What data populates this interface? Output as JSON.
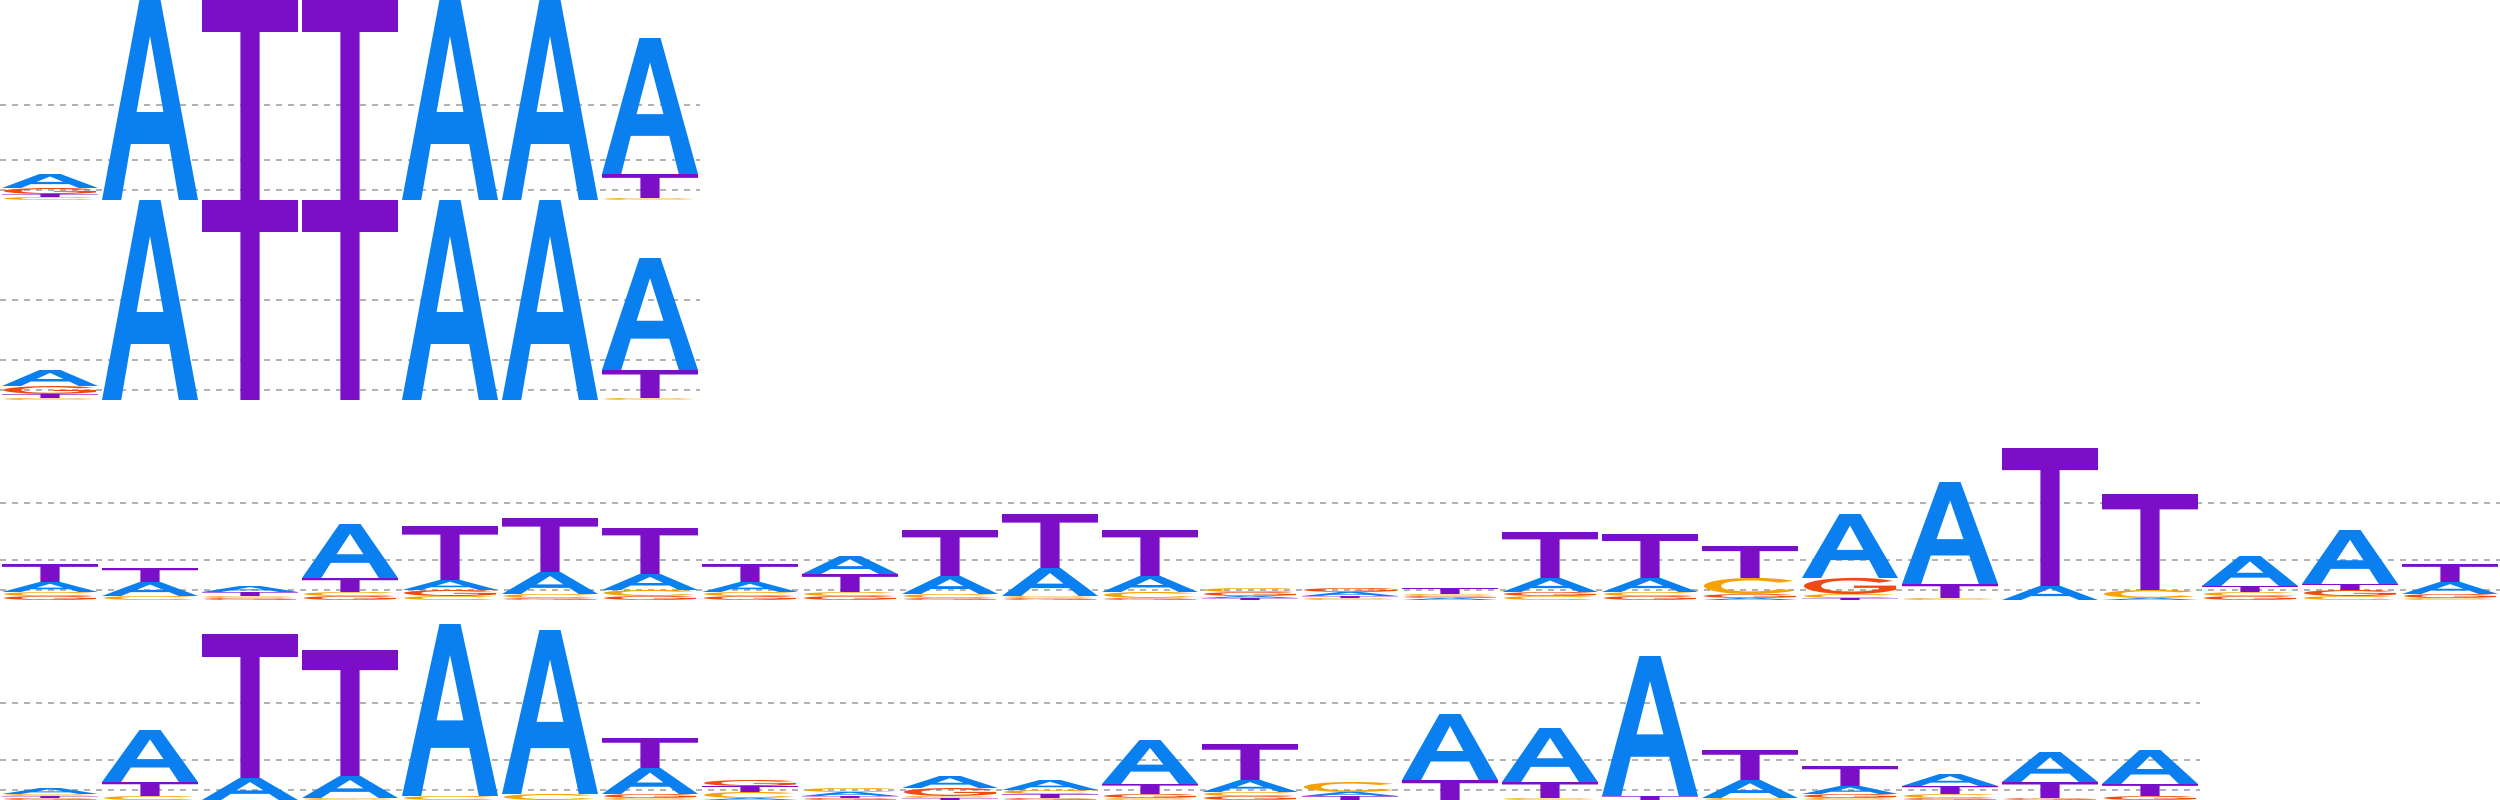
{
  "colors": {
    "A": "#0a7ff0",
    "T": "#7b0fc8",
    "C": "#f5a100",
    "G": "#f04a10",
    "grid": "#9a9a9a"
  },
  "logos": [
    {
      "name": "logo-1",
      "columns": [
        [
          [
            "A",
            0.07
          ],
          [
            "G",
            0.03
          ],
          [
            "C",
            0.015
          ],
          [
            "T",
            0.015
          ]
        ],
        [
          [
            "A",
            1.0
          ]
        ],
        [
          [
            "T",
            1.0
          ]
        ],
        [
          [
            "T",
            1.0
          ]
        ],
        [
          [
            "A",
            1.0
          ]
        ],
        [
          [
            "A",
            1.0
          ]
        ],
        [
          [
            "A",
            0.68
          ],
          [
            "T",
            0.12
          ],
          [
            "C",
            0.01
          ]
        ]
      ]
    },
    {
      "name": "logo-2",
      "columns": [
        [
          [
            "A",
            0.08
          ],
          [
            "G",
            0.04
          ],
          [
            "T",
            0.02
          ],
          [
            "C",
            0.01
          ]
        ],
        [
          [
            "A",
            1.0
          ]
        ],
        [
          [
            "T",
            1.0
          ]
        ],
        [
          [
            "T",
            1.0
          ]
        ],
        [
          [
            "A",
            1.0
          ]
        ],
        [
          [
            "A",
            1.0
          ]
        ],
        [
          [
            "A",
            0.56
          ],
          [
            "T",
            0.14
          ],
          [
            "C",
            0.01
          ]
        ]
      ]
    },
    {
      "name": "logo-3",
      "columns": [
        [
          [
            "T",
            0.09
          ],
          [
            "A",
            0.05
          ],
          [
            "G",
            0.02
          ],
          [
            "C",
            0.02
          ]
        ],
        [
          [
            "A",
            0.07
          ],
          [
            "T",
            0.07
          ],
          [
            "C",
            0.02
          ]
        ],
        [
          [
            "A",
            0.03
          ],
          [
            "T",
            0.02
          ],
          [
            "G",
            0.01
          ],
          [
            "C",
            0.01
          ]
        ],
        [
          [
            "A",
            0.27
          ],
          [
            "T",
            0.07
          ],
          [
            "G",
            0.02
          ],
          [
            "C",
            0.02
          ]
        ],
        [
          [
            "T",
            0.27
          ],
          [
            "A",
            0.05
          ],
          [
            "G",
            0.03
          ],
          [
            "C",
            0.02
          ]
        ],
        [
          [
            "T",
            0.27
          ],
          [
            "A",
            0.11
          ],
          [
            "C",
            0.02
          ],
          [
            "G",
            0.01
          ]
        ],
        [
          [
            "T",
            0.23
          ],
          [
            "A",
            0.08
          ],
          [
            "C",
            0.03
          ],
          [
            "G",
            0.02
          ]
        ],
        [
          [
            "A",
            0.05
          ],
          [
            "T",
            0.09
          ],
          [
            "G",
            0.02
          ],
          [
            "C",
            0.02
          ]
        ],
        [
          [
            "T",
            0.09
          ],
          [
            "A",
            0.09
          ],
          [
            "G",
            0.02
          ],
          [
            "C",
            0.02
          ]
        ],
        [
          [
            "T",
            0.23
          ],
          [
            "A",
            0.09
          ],
          [
            "C",
            0.02
          ],
          [
            "G",
            0.01
          ]
        ],
        [
          [
            "T",
            0.27
          ],
          [
            "A",
            0.14
          ],
          [
            "G",
            0.01
          ],
          [
            "C",
            0.01
          ]
        ],
        [
          [
            "T",
            0.23
          ],
          [
            "A",
            0.08
          ],
          [
            "C",
            0.03
          ],
          [
            "G",
            0.01
          ]
        ],
        [
          [
            "G",
            0.02
          ],
          [
            "C",
            0.02
          ],
          [
            "T",
            0.01
          ],
          [
            "A",
            0.01
          ]
        ],
        [
          [
            "A",
            0.02
          ],
          [
            "G",
            0.02
          ],
          [
            "C",
            0.01
          ],
          [
            "T",
            0.01
          ]
        ],
        [
          [
            "T",
            0.03
          ],
          [
            "A",
            0.01
          ],
          [
            "G",
            0.01
          ],
          [
            "C",
            0.01
          ]
        ],
        [
          [
            "T",
            0.23
          ],
          [
            "A",
            0.07
          ],
          [
            "C",
            0.02
          ],
          [
            "G",
            0.02
          ]
        ],
        [
          [
            "T",
            0.22
          ],
          [
            "A",
            0.07
          ],
          [
            "G",
            0.02
          ],
          [
            "C",
            0.02
          ]
        ],
        [
          [
            "T",
            0.16
          ],
          [
            "C",
            0.08
          ],
          [
            "G",
            0.02
          ],
          [
            "A",
            0.01
          ]
        ],
        [
          [
            "A",
            0.32
          ],
          [
            "G",
            0.08
          ],
          [
            "C",
            0.02
          ],
          [
            "T",
            0.01
          ]
        ],
        [
          [
            "A",
            0.51
          ],
          [
            "T",
            0.07
          ],
          [
            "C",
            0.01
          ]
        ],
        [
          [
            "T",
            0.69
          ],
          [
            "A",
            0.07
          ]
        ],
        [
          [
            "T",
            0.48
          ],
          [
            "C",
            0.04
          ],
          [
            "A",
            0.01
          ]
        ],
        [
          [
            "A",
            0.15
          ],
          [
            "T",
            0.03
          ],
          [
            "G",
            0.02
          ],
          [
            "C",
            0.02
          ]
        ],
        [
          [
            "A",
            0.27
          ],
          [
            "G",
            0.03
          ],
          [
            "T",
            0.03
          ],
          [
            "C",
            0.02
          ]
        ],
        [
          [
            "T",
            0.09
          ],
          [
            "A",
            0.06
          ],
          [
            "G",
            0.02
          ],
          [
            "C",
            0.01
          ]
        ]
      ]
    },
    {
      "name": "logo-4",
      "columns": [
        [
          [
            "A",
            0.03
          ],
          [
            "G",
            0.01
          ],
          [
            "T",
            0.01
          ],
          [
            "C",
            0.01
          ]
        ],
        [
          [
            "A",
            0.26
          ],
          [
            "T",
            0.07
          ],
          [
            "C",
            0.02
          ]
        ],
        [
          [
            "T",
            0.72
          ],
          [
            "A",
            0.11
          ]
        ],
        [
          [
            "T",
            0.63
          ],
          [
            "A",
            0.11
          ],
          [
            "C",
            0.01
          ]
        ],
        [
          [
            "A",
            0.86
          ],
          [
            "C",
            0.02
          ]
        ],
        [
          [
            "A",
            0.82
          ],
          [
            "C",
            0.03
          ]
        ],
        [
          [
            "T",
            0.15
          ],
          [
            "A",
            0.13
          ],
          [
            "G",
            0.02
          ],
          [
            "C",
            0.01
          ]
        ],
        [
          [
            "C",
            0.03
          ],
          [
            "T",
            0.03
          ],
          [
            "G",
            0.03
          ],
          [
            "A",
            0.01
          ]
        ],
        [
          [
            "A",
            0.02
          ],
          [
            "C",
            0.02
          ],
          [
            "G",
            0.01
          ],
          [
            "T",
            0.01
          ]
        ],
        [
          [
            "A",
            0.06
          ],
          [
            "G",
            0.04
          ],
          [
            "T",
            0.01
          ],
          [
            "C",
            0.01
          ]
        ],
        [
          [
            "A",
            0.05
          ],
          [
            "T",
            0.02
          ],
          [
            "C",
            0.02
          ],
          [
            "G",
            0.01
          ]
        ],
        [
          [
            "A",
            0.22
          ],
          [
            "T",
            0.05
          ],
          [
            "G",
            0.02
          ],
          [
            "C",
            0.01
          ]
        ],
        [
          [
            "T",
            0.18
          ],
          [
            "A",
            0.06
          ],
          [
            "G",
            0.02
          ],
          [
            "C",
            0.02
          ]
        ],
        [
          [
            "C",
            0.05
          ],
          [
            "T",
            0.02
          ],
          [
            "A",
            0.02
          ]
        ],
        [
          [
            "A",
            0.33
          ],
          [
            "T",
            0.1
          ]
        ],
        [
          [
            "A",
            0.27
          ],
          [
            "T",
            0.08
          ],
          [
            "C",
            0.01
          ]
        ],
        [
          [
            "A",
            0.7
          ],
          [
            "T",
            0.02
          ]
        ],
        [
          [
            "T",
            0.15
          ],
          [
            "A",
            0.09
          ],
          [
            "C",
            0.01
          ]
        ],
        [
          [
            "T",
            0.1
          ],
          [
            "A",
            0.04
          ],
          [
            "G",
            0.02
          ],
          [
            "C",
            0.01
          ]
        ],
        [
          [
            "A",
            0.06
          ],
          [
            "T",
            0.04
          ],
          [
            "C",
            0.02
          ],
          [
            "G",
            0.01
          ]
        ],
        [
          [
            "A",
            0.15
          ],
          [
            "T",
            0.08
          ],
          [
            "G",
            0.01
          ]
        ],
        [
          [
            "A",
            0.17
          ],
          [
            "T",
            0.06
          ],
          [
            "G",
            0.02
          ]
        ]
      ]
    }
  ]
}
